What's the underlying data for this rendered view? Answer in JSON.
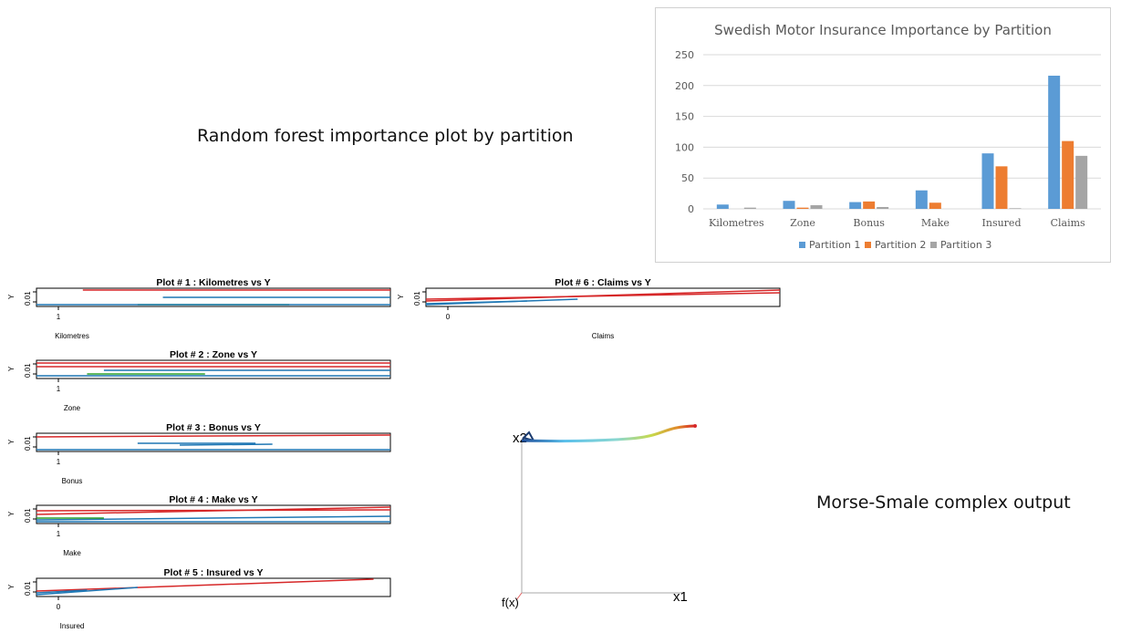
{
  "captions": {
    "random_forest": "Random forest importance plot by partition",
    "morse_smale": "Morse-Smale complex output"
  },
  "chart_data": [
    {
      "type": "bar",
      "title": "Swedish Motor Insurance Importance by Partition",
      "categories": [
        "Kilometres",
        "Zone",
        "Bonus",
        "Make",
        "Insured",
        "Claims"
      ],
      "series": [
        {
          "name": "Partition 1",
          "color": "#5b9bd5",
          "values": [
            7,
            13,
            11,
            30,
            90,
            216
          ]
        },
        {
          "name": "Partition 2",
          "color": "#ed7d31",
          "values": [
            0,
            2,
            12,
            10,
            69,
            110
          ]
        },
        {
          "name": "Partition 3",
          "color": "#a5a5a5",
          "values": [
            2,
            6,
            3,
            0,
            1,
            86
          ]
        }
      ],
      "ylim": [
        0,
        250
      ],
      "yticks": [
        0,
        50,
        100,
        150,
        200,
        250
      ],
      "grid": true,
      "legend": "bottom"
    }
  ],
  "scatter_panels": [
    {
      "title": "Plot # 1 :  Kilometres  vs  Y",
      "xlabel": "Kilometres",
      "ylabel": "Y",
      "ytick": "0.01",
      "xtick": "1"
    },
    {
      "title": "Plot # 2 :  Zone  vs  Y",
      "xlabel": "Zone",
      "ylabel": "Y",
      "ytick": "0.01",
      "xtick": "1"
    },
    {
      "title": "Plot # 3 :  Bonus  vs  Y",
      "xlabel": "Bonus",
      "ylabel": "Y",
      "ytick": "0.01",
      "xtick": "1"
    },
    {
      "title": "Plot # 4 :  Make  vs  Y",
      "xlabel": "Make",
      "ylabel": "Y",
      "ytick": "0.01",
      "xtick": "1"
    },
    {
      "title": "Plot # 5 :  Insured  vs  Y",
      "xlabel": "Insured",
      "ylabel": "Y",
      "ytick": "0.01",
      "xtick": "0"
    },
    {
      "title": "Plot # 6 :  Claims  vs  Y",
      "xlabel": "Claims",
      "ylabel": "Y",
      "ytick": "0.01",
      "xtick": "0"
    }
  ],
  "morse_smale": {
    "axis_x_label": "x1",
    "axis_y_label": "x2",
    "axis_z_label": "f(x)"
  },
  "colors": {
    "red_line": "#d62728",
    "blue_line": "#1f77b4",
    "green_line": "#2ca02c"
  }
}
